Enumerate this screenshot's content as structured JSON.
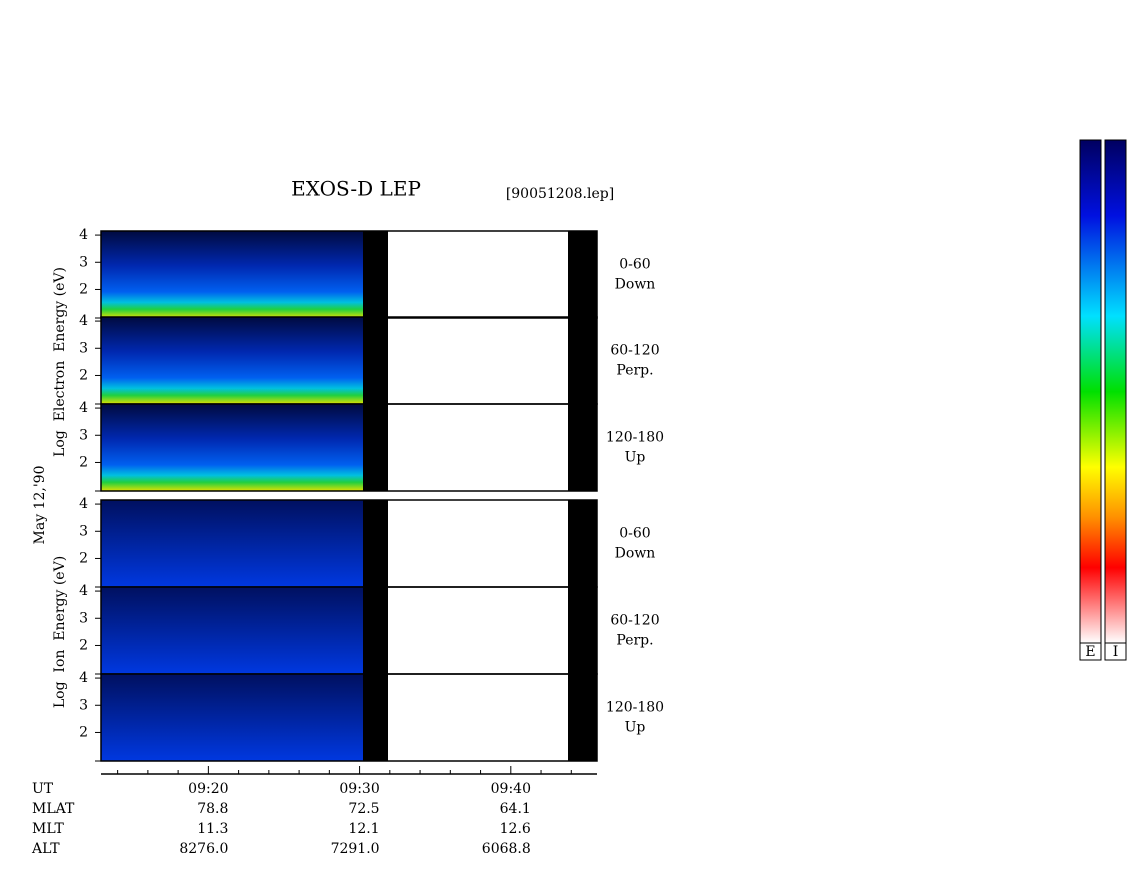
{
  "chart_data": {
    "type": "spectrogram",
    "title": "EXOS-D LEP",
    "file": "[90051208.lep]",
    "date": "May 12,'90",
    "ylabels": [
      "Log  Electron  Energy (eV)",
      "Log  Ion  Energy (eV)"
    ],
    "panels": [
      {
        "group": 0,
        "angle": "0-60",
        "direction": "Down"
      },
      {
        "group": 0,
        "angle": "60-120",
        "direction": "Perp."
      },
      {
        "group": 0,
        "angle": "120-180",
        "direction": "Up"
      },
      {
        "group": 1,
        "angle": "0-60",
        "direction": "Down"
      },
      {
        "group": 1,
        "angle": "60-120",
        "direction": "Perp."
      },
      {
        "group": 1,
        "angle": "120-180",
        "direction": "Up"
      }
    ],
    "ylim": [
      0.95,
      4.15
    ],
    "yticks": [
      2,
      3,
      4
    ],
    "xlim": [
      552.9,
      585.7
    ],
    "xticks": [
      {
        "value": 560,
        "label": "09:20"
      },
      {
        "value": 570,
        "label": "09:30"
      },
      {
        "value": 580,
        "label": "09:40"
      }
    ],
    "minor_xticks": [
      554,
      556,
      558,
      562,
      564,
      566,
      568,
      572,
      574,
      576,
      578,
      582,
      584
    ],
    "orbit": {
      "labels": [
        "UT",
        "MLAT",
        "MLT",
        "ALT"
      ],
      "rows": [
        [
          "78.8",
          "72.5",
          "64.1"
        ],
        [
          "11.3",
          "12.1",
          "12.6"
        ],
        [
          "8276.0",
          "7291.0",
          "6068.8"
        ]
      ]
    },
    "colorbars": [
      "E",
      "I"
    ]
  }
}
